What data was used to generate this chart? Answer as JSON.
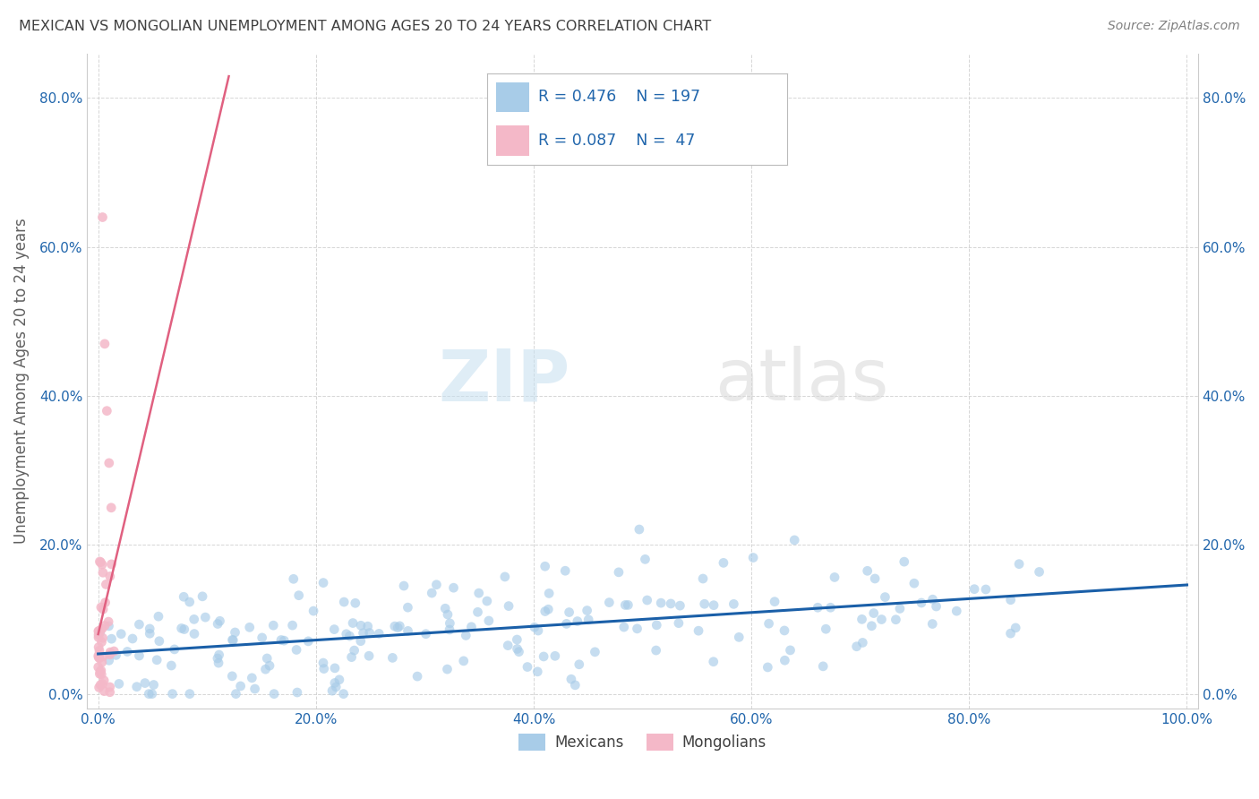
{
  "title": "MEXICAN VS MONGOLIAN UNEMPLOYMENT AMONG AGES 20 TO 24 YEARS CORRELATION CHART",
  "source": "Source: ZipAtlas.com",
  "ylabel": "Unemployment Among Ages 20 to 24 years",
  "xlabel": "",
  "watermark_left": "ZIP",
  "watermark_right": "atlas",
  "mexican_R": 0.476,
  "mexican_N": 197,
  "mongolian_R": 0.087,
  "mongolian_N": 47,
  "blue_color": "#a8cce8",
  "pink_color": "#f4b8c8",
  "blue_line_color": "#1a5fa8",
  "pink_line_color": "#e06080",
  "legend_text_color": "#2166ac",
  "title_color": "#404040",
  "source_color": "#808080",
  "axis_label_color": "#606060",
  "tick_color": "#2166ac",
  "background_color": "#ffffff",
  "grid_color": "#cccccc",
  "xlim": [
    -0.01,
    1.01
  ],
  "ylim": [
    -0.02,
    0.86
  ],
  "xtick_positions": [
    0.0,
    0.2,
    0.4,
    0.6,
    0.8,
    1.0
  ],
  "xtick_labels": [
    "0.0%",
    "20.0%",
    "40.0%",
    "60.0%",
    "80.0%",
    "100.0%"
  ],
  "ytick_positions": [
    0.0,
    0.2,
    0.4,
    0.6,
    0.8
  ],
  "ytick_labels": [
    "0.0%",
    "20.0%",
    "40.0%",
    "60.0%",
    "80.0%"
  ],
  "marker_size": 60,
  "marker_alpha": 0.65
}
